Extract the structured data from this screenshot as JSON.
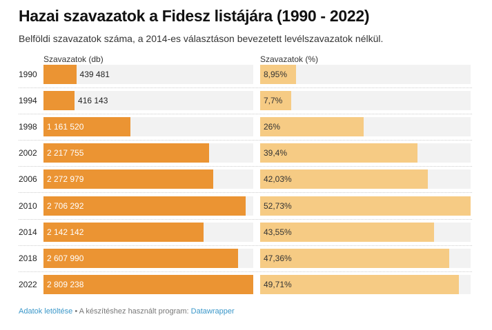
{
  "title": "Hazai szavazatok a Fidesz listájára (1990 - 2022)",
  "subtitle": "Belföldi szavazatok száma, a 2014-es választáson bevezetett levélszavazatok nélkül.",
  "footer": {
    "download": "Adatok letöltése",
    "sep": " • A készítéshez használt program: ",
    "tool": "Datawrapper"
  },
  "colors": {
    "votes": "#eb9433",
    "pct": "#f6cb84",
    "track": "#f2f2f2"
  },
  "chart_data": {
    "type": "bar",
    "categories": [
      "1990",
      "1994",
      "1998",
      "2002",
      "2006",
      "2010",
      "2014",
      "2018",
      "2022"
    ],
    "series": [
      {
        "name": "Szavazatok (db)",
        "values": [
          439481,
          416143,
          1161520,
          2217755,
          2272979,
          2706292,
          2142142,
          2607990,
          2809238
        ],
        "labels": [
          "439 481",
          "416 143",
          "1 161 520",
          "2 217 755",
          "2 272 979",
          "2 706 292",
          "2 142 142",
          "2 607 990",
          "2 809 238"
        ],
        "max": 2809238
      },
      {
        "name": "Szavazatok (%)",
        "values": [
          8.95,
          7.7,
          26,
          39.4,
          42.03,
          52.73,
          43.55,
          47.36,
          49.71
        ],
        "labels": [
          "8,95%",
          "7,7%",
          "26%",
          "39,4%",
          "42,03%",
          "52,73%",
          "43,55%",
          "47,36%",
          "49,71%"
        ],
        "max": 52.73
      }
    ]
  }
}
